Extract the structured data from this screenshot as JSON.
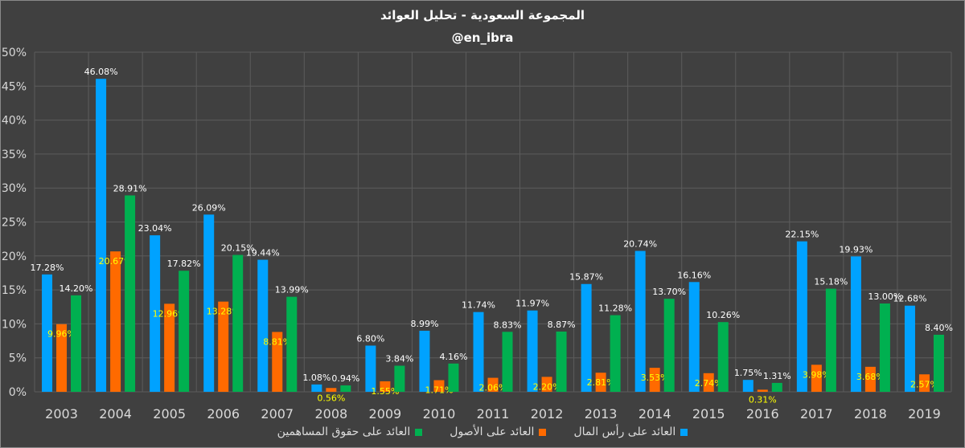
{
  "chart_data": {
    "type": "bar",
    "title": "المجموعة السعودية - تحليل العوائد",
    "subtitle": "@en_ibra",
    "categories": [
      "2003",
      "2004",
      "2005",
      "2006",
      "2007",
      "2008",
      "2009",
      "2010",
      "2011",
      "2012",
      "2013",
      "2014",
      "2015",
      "2016",
      "2017",
      "2018",
      "2019"
    ],
    "ylim": [
      0,
      50
    ],
    "yticks": [
      0,
      5,
      10,
      15,
      20,
      25,
      30,
      35,
      40,
      45,
      50
    ],
    "ytick_labels": [
      "0%",
      "5%",
      "10%",
      "15%",
      "20%",
      "25%",
      "30%",
      "35%",
      "40%",
      "45%",
      "50%"
    ],
    "grid": true,
    "legend_position": "bottom",
    "series": [
      {
        "name": "العائد على رأس المال",
        "color": "#00A2FF",
        "label_color": "#FFFFFF",
        "values": [
          17.28,
          46.08,
          23.04,
          26.09,
          19.44,
          1.08,
          6.8,
          8.99,
          11.74,
          11.97,
          15.87,
          20.74,
          16.16,
          1.75,
          22.15,
          19.93,
          12.68
        ],
        "labels": [
          "17.28%",
          "46.08%",
          "23.04%",
          "26.09%",
          "19.44%",
          "1.08%",
          "6.80%",
          "8.99%",
          "11.74%",
          "11.97%",
          "15.87%",
          "20.74%",
          "16.16%",
          "1.75%",
          "22.15%",
          "19.93%",
          "12.68%"
        ]
      },
      {
        "name": "العائد على الأصول",
        "color": "#FF6A00",
        "label_color": "#FFFF00",
        "values": [
          9.96,
          20.67,
          12.96,
          13.28,
          8.81,
          0.56,
          1.55,
          1.71,
          2.06,
          2.2,
          2.81,
          3.53,
          2.74,
          0.31,
          3.98,
          3.68,
          2.57
        ],
        "labels": [
          "9.96%",
          "20.67%",
          "12.96%",
          "13.28%",
          "8.81%",
          "0.56%",
          "1.55%",
          "1.71%",
          "2.06%",
          "2.20%",
          "2.81%",
          "3.53%",
          "2.74%",
          "0.31%",
          "3.98%",
          "3.68%",
          "2.57%"
        ]
      },
      {
        "name": "العائد على حقوق المساهمين",
        "color": "#00B050",
        "label_color": "#FFFFFF",
        "values": [
          14.2,
          28.91,
          17.82,
          20.15,
          13.99,
          0.94,
          3.84,
          4.16,
          8.83,
          8.87,
          11.28,
          13.7,
          10.26,
          1.31,
          15.18,
          13.0,
          8.4
        ],
        "labels": [
          "14.20%",
          "28.91%",
          "17.82%",
          "20.15%",
          "13.99%",
          "0.94%",
          "3.84%",
          "4.16%",
          "8.83%",
          "8.87%",
          "11.28%",
          "13.70%",
          "10.26%",
          "1.31%",
          "15.18%",
          "13.00%",
          "8.40%"
        ]
      }
    ]
  }
}
